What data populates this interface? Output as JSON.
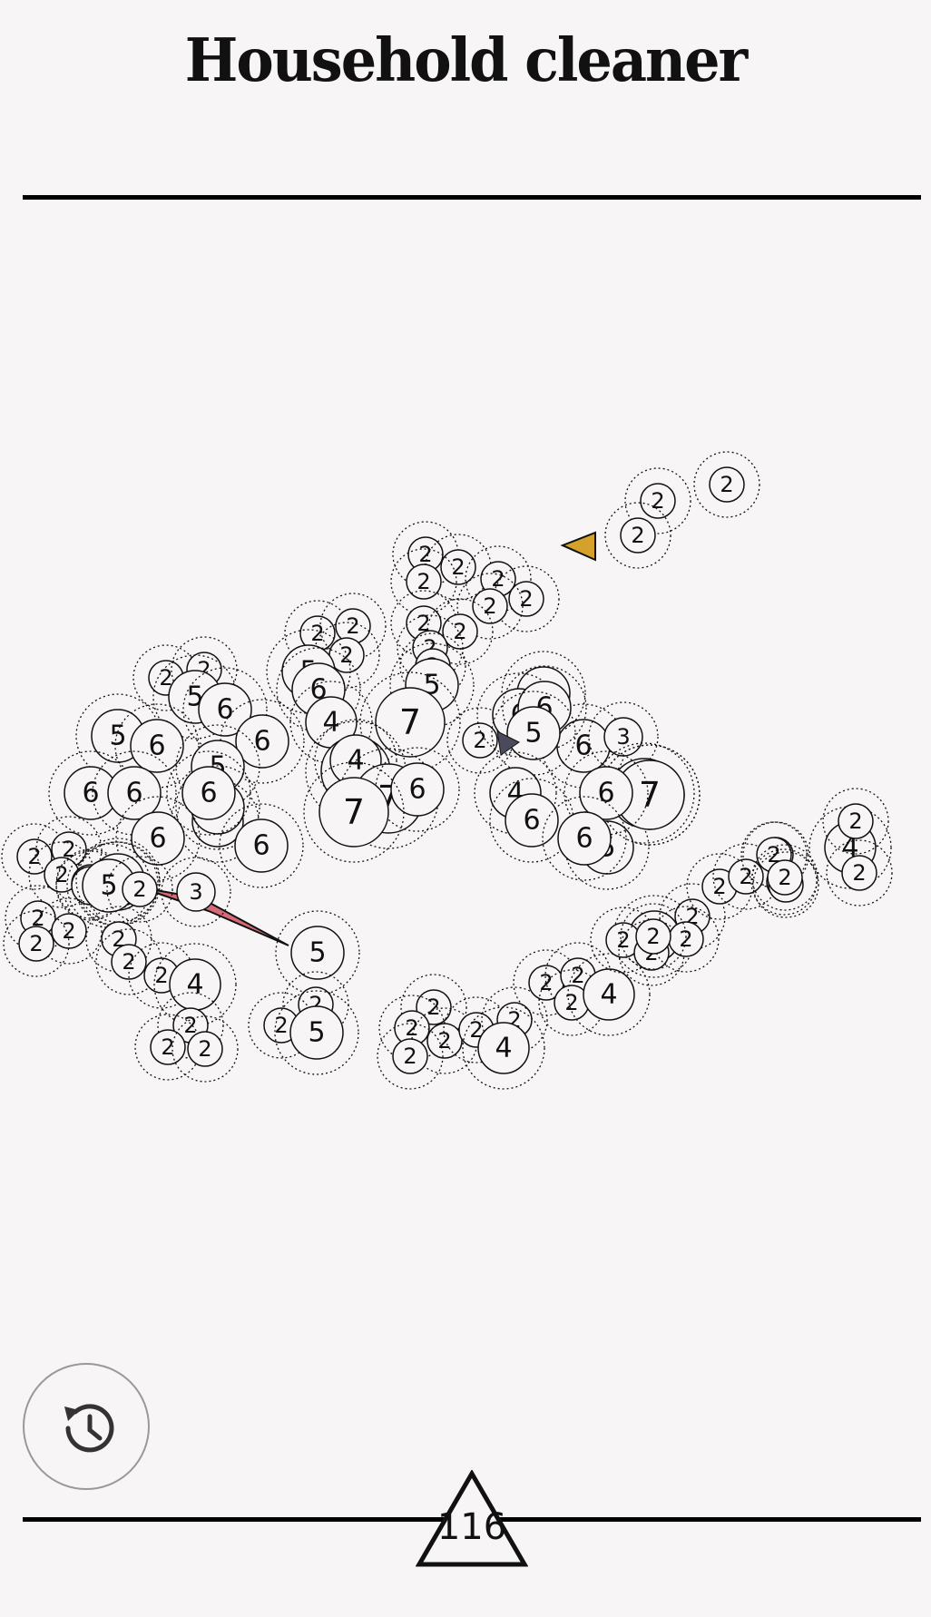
{
  "title": "Household cleaner",
  "score": "116",
  "icons": {
    "history": "history-icon",
    "score_triangle": "triangle-icon",
    "gold_marker": "gold-triangle-icon",
    "dark_marker": "dark-triangle-icon",
    "red_link": "red-wedge-icon"
  },
  "colors": {
    "background": "#f7f5f6",
    "stroke": "#111111",
    "bubble_fill": "#f7f5f6",
    "gold": "#d4a12b",
    "dark": "#4a4a5c",
    "red": "#d86a78"
  },
  "bubbles": [
    {
      "v": "2"
    },
    {
      "v": "2"
    },
    {
      "v": "2"
    },
    {
      "v": "2"
    },
    {
      "v": "2"
    },
    {
      "v": "2"
    },
    {
      "v": "2"
    },
    {
      "v": "2"
    },
    {
      "v": "2"
    },
    {
      "v": "2"
    },
    {
      "v": "2"
    },
    {
      "v": "2"
    },
    {
      "v": "2"
    },
    {
      "v": "5"
    },
    {
      "v": "2"
    },
    {
      "v": "2"
    },
    {
      "v": "2"
    },
    {
      "v": "5"
    },
    {
      "v": "6"
    },
    {
      "v": "4"
    },
    {
      "v": "7"
    },
    {
      "v": "2"
    },
    {
      "v": "2"
    },
    {
      "v": "5"
    },
    {
      "v": "6"
    },
    {
      "v": "5"
    },
    {
      "v": "6"
    },
    {
      "v": "6"
    },
    {
      "v": "5"
    },
    {
      "v": "4"
    },
    {
      "v": "5"
    },
    {
      "v": "2"
    },
    {
      "v": "6"
    },
    {
      "v": "3"
    },
    {
      "v": "5"
    },
    {
      "v": "6"
    },
    {
      "v": "6"
    },
    {
      "v": "7"
    },
    {
      "v": "5"
    },
    {
      "v": "7"
    },
    {
      "v": "7"
    },
    {
      "v": "4"
    },
    {
      "v": "7"
    },
    {
      "v": "6"
    },
    {
      "v": "7"
    },
    {
      "v": "6"
    },
    {
      "v": "6"
    },
    {
      "v": "6"
    },
    {
      "v": "6"
    },
    {
      "v": "5"
    },
    {
      "v": "6"
    },
    {
      "v": "4"
    },
    {
      "v": "6"
    },
    {
      "v": "5"
    },
    {
      "v": "7"
    },
    {
      "v": "6"
    },
    {
      "v": "6"
    },
    {
      "v": "2"
    },
    {
      "v": "2"
    },
    {
      "v": "2"
    },
    {
      "v": "3"
    },
    {
      "v": "5"
    },
    {
      "v": "3"
    },
    {
      "v": "2"
    },
    {
      "v": "2"
    },
    {
      "v": "2"
    },
    {
      "v": "6"
    },
    {
      "v": "5"
    },
    {
      "v": "2"
    },
    {
      "v": "3"
    },
    {
      "v": "2"
    },
    {
      "v": "2"
    },
    {
      "v": "2"
    },
    {
      "v": "4"
    },
    {
      "v": "2"
    },
    {
      "v": "2"
    },
    {
      "v": "2"
    },
    {
      "v": "5"
    },
    {
      "v": "2"
    },
    {
      "v": "2"
    },
    {
      "v": "5"
    },
    {
      "v": "2"
    },
    {
      "v": "2"
    },
    {
      "v": "2"
    },
    {
      "v": "2"
    },
    {
      "v": "2"
    },
    {
      "v": "2"
    },
    {
      "v": "4"
    },
    {
      "v": "2"
    },
    {
      "v": "2"
    },
    {
      "v": "2"
    },
    {
      "v": "4"
    },
    {
      "v": "4"
    },
    {
      "v": "2"
    },
    {
      "v": "2"
    },
    {
      "v": "2"
    },
    {
      "v": "2"
    },
    {
      "v": "2"
    },
    {
      "v": "2"
    },
    {
      "v": "2"
    },
    {
      "v": "2"
    },
    {
      "v": "2"
    },
    {
      "v": "2"
    },
    {
      "v": "2"
    },
    {
      "v": "2"
    },
    {
      "v": "4"
    },
    {
      "v": "2"
    },
    {
      "v": "2"
    }
  ]
}
